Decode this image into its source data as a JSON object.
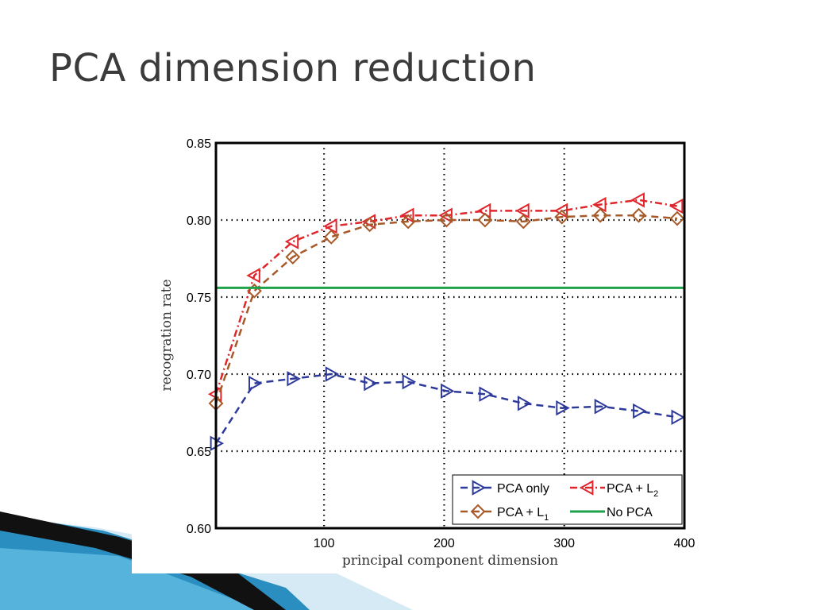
{
  "slide": {
    "title": "PCA dimension reduction"
  },
  "colors": {
    "pca_only": "#2e3a9a",
    "pca_l2": "#e0252b",
    "pca_l1": "#a65a2a",
    "no_pca": "#1fa34a",
    "decor_blue": "#2a8fc0",
    "decor_light": "#cfe6f2"
  },
  "chart_data": {
    "type": "line",
    "title": "",
    "xlabel": "principal component dimension",
    "ylabel": "recogration rate",
    "xlim": [
      10,
      400
    ],
    "ylim": [
      0.6,
      0.85
    ],
    "xticks": [
      100,
      200,
      300,
      400
    ],
    "xtick_labels": [
      "100",
      "200",
      "300",
      "400"
    ],
    "yticks": [
      0.6,
      0.65,
      0.7,
      0.75,
      0.8,
      0.85
    ],
    "ytick_labels": [
      "0.60",
      "0.65",
      "0.70",
      "0.75",
      "0.80",
      "0.85"
    ],
    "grid": true,
    "legend_position": "bottom-right",
    "x": [
      10,
      42,
      74,
      106,
      138,
      170,
      202,
      234,
      266,
      298,
      330,
      362,
      394
    ],
    "series": [
      {
        "name": "PCA only",
        "marker": "triangle-right",
        "values": [
          0.655,
          0.694,
          0.697,
          0.7,
          0.694,
          0.695,
          0.689,
          0.687,
          0.681,
          0.678,
          0.679,
          0.676,
          0.672
        ]
      },
      {
        "name": "PCA + L",
        "name_subscript": "2",
        "marker": "triangle-left",
        "values": [
          0.687,
          0.764,
          0.786,
          0.796,
          0.799,
          0.803,
          0.803,
          0.806,
          0.806,
          0.806,
          0.81,
          0.813,
          0.809
        ]
      },
      {
        "name": "PCA + L",
        "name_subscript": "1",
        "marker": "diamond",
        "values": [
          0.681,
          0.754,
          0.776,
          0.789,
          0.797,
          0.799,
          0.8,
          0.8,
          0.799,
          0.802,
          0.803,
          0.803,
          0.801
        ]
      },
      {
        "name": "No PCA",
        "marker": "none",
        "constant": 0.756
      }
    ]
  }
}
